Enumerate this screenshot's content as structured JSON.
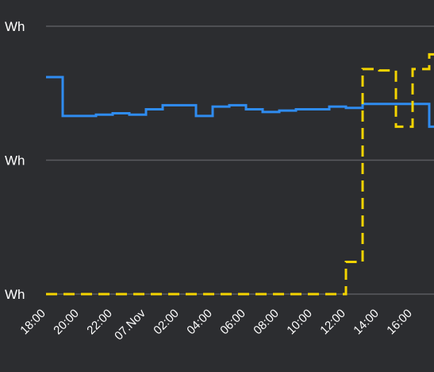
{
  "chart_data": {
    "type": "line",
    "step": true,
    "title": "",
    "xlabel": "",
    "ylabel": "",
    "y_tick_labels": [
      "Wh",
      "Wh",
      "Wh"
    ],
    "x_tick_labels": [
      "18:00",
      "20:00",
      "22:00",
      "07.Nov",
      "02:00",
      "04:00",
      "06:00",
      "08:00",
      "10:00",
      "12:00",
      "14:00",
      "16:00"
    ],
    "x": [
      "18:00",
      "19:00",
      "20:00",
      "21:00",
      "22:00",
      "23:00",
      "07.Nov",
      "01:00",
      "02:00",
      "03:00",
      "04:00",
      "05:00",
      "06:00",
      "07:00",
      "08:00",
      "09:00",
      "10:00",
      "11:00",
      "12:00",
      "13:00",
      "14:00",
      "15:00",
      "16:00",
      "17:00"
    ],
    "ylim": [
      0,
      2
    ],
    "grid": true,
    "legend": "none",
    "series": [
      {
        "color": "#2f8cf0",
        "dash": "solid",
        "values": [
          1.62,
          1.33,
          1.33,
          1.34,
          1.35,
          1.34,
          1.38,
          1.41,
          1.41,
          1.33,
          1.4,
          1.41,
          1.38,
          1.36,
          1.37,
          1.38,
          1.38,
          1.4,
          1.39,
          1.42,
          1.42,
          1.42,
          1.42,
          1.25
        ]
      },
      {
        "color": "#f4d400",
        "dash": "dashed",
        "values": [
          0.0,
          0.0,
          0.0,
          0.0,
          0.0,
          0.0,
          0.0,
          0.0,
          0.0,
          0.0,
          0.0,
          0.0,
          0.0,
          0.0,
          0.0,
          0.0,
          0.0,
          0.0,
          0.24,
          1.68,
          1.67,
          1.25,
          1.68,
          1.79
        ]
      }
    ]
  }
}
